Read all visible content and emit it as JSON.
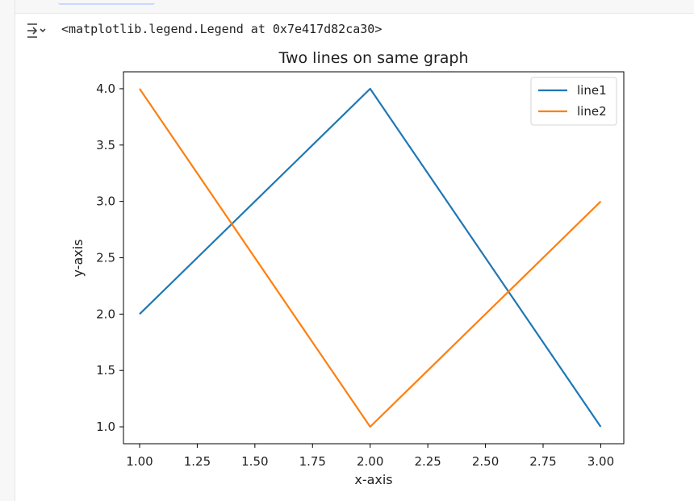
{
  "output": {
    "repr": "<matplotlib.legend.Legend at 0x7e417d82ca30>",
    "icon": "output-collapse-icon"
  },
  "chart_data": {
    "type": "line",
    "title": "Two lines on same graph",
    "xlabel": "x-axis",
    "ylabel": "y-axis",
    "xlim": [
      0.93,
      3.1
    ],
    "ylim": [
      0.85,
      4.15
    ],
    "xticks": [
      "1.00",
      "1.25",
      "1.50",
      "1.75",
      "2.00",
      "2.25",
      "2.50",
      "2.75",
      "3.00"
    ],
    "yticks": [
      "1.0",
      "1.5",
      "2.0",
      "2.5",
      "3.0",
      "3.5",
      "4.0"
    ],
    "grid": false,
    "legend_position": "top-right",
    "series": [
      {
        "name": "line1",
        "color": "#1f77b4",
        "x": [
          1,
          2,
          3
        ],
        "y": [
          2,
          4,
          1
        ]
      },
      {
        "name": "line2",
        "color": "#ff7f0e",
        "x": [
          1,
          2,
          3
        ],
        "y": [
          4,
          1,
          3
        ]
      }
    ]
  }
}
